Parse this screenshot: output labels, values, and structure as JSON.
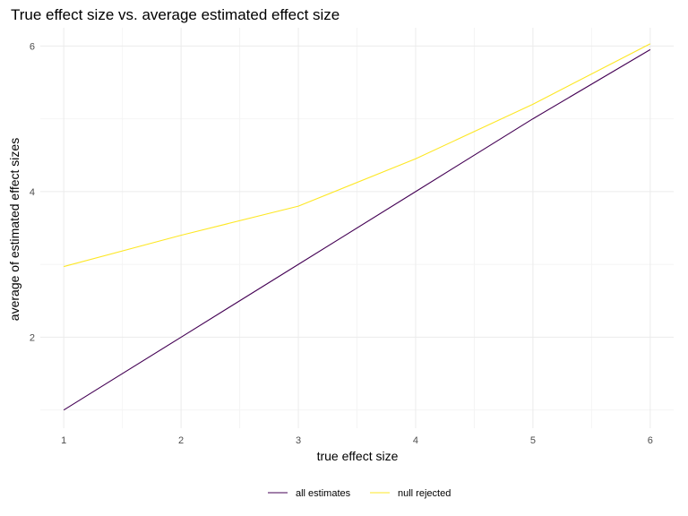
{
  "chart_data": {
    "type": "line",
    "title": "True effect size vs. average estimated effect size",
    "xlabel": "true effect size",
    "ylabel": "average of estimated effect sizes",
    "x": [
      1,
      2,
      3,
      4,
      5,
      6
    ],
    "xlim": [
      0.8,
      6.2
    ],
    "ylim": [
      0.75,
      6.25
    ],
    "xticks": [
      1,
      2,
      3,
      4,
      5,
      6
    ],
    "yticks": [
      2,
      4,
      6
    ],
    "grid": true,
    "legend_position": "bottom",
    "series": [
      {
        "name": "all estimates",
        "color": "#440154",
        "values": [
          1.0,
          2.0,
          3.0,
          4.0,
          5.0,
          5.95
        ]
      },
      {
        "name": "null rejected",
        "color": "#FDE725",
        "values": [
          2.97,
          3.4,
          3.8,
          4.45,
          5.2,
          6.03
        ]
      }
    ]
  }
}
